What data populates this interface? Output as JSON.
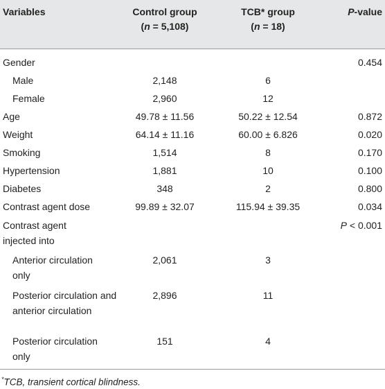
{
  "table": {
    "headers": {
      "variables": "Variables",
      "control_line1": "Control group",
      "control_n_prefix": "(",
      "control_n_var": "n",
      "control_n_rest": " = 5,108)",
      "tcb_line1": "TCB* group",
      "tcb_n_prefix": "(",
      "tcb_n_var": "n",
      "tcb_n_rest": " = 18)",
      "pvalue_italic": "P",
      "pvalue_rest": "-value"
    },
    "rows": [
      {
        "label": "Gender",
        "control": "",
        "tcb": "",
        "p": "0.454"
      },
      {
        "label": "Male",
        "control": "2,148",
        "tcb": "6",
        "p": ""
      },
      {
        "label": "Female",
        "control": "2,960",
        "tcb": "12",
        "p": ""
      },
      {
        "label": "Age",
        "control": "49.78 ± 11.56",
        "tcb": "50.22 ± 12.54",
        "p": "0.872"
      },
      {
        "label": "Weight",
        "control": "64.14 ± 11.16",
        "tcb": "60.00 ± 6.826",
        "p": "0.020"
      },
      {
        "label": "Smoking",
        "control": "1,514",
        "tcb": "8",
        "p": "0.170"
      },
      {
        "label": "Hypertension",
        "control": "1,881",
        "tcb": "10",
        "p": "0.100"
      },
      {
        "label": "Diabetes",
        "control": "348",
        "tcb": "2",
        "p": "0.800"
      },
      {
        "label": "Contrast agent dose",
        "control": "99.89 ± 32.07",
        "tcb": "115.94 ± 39.35",
        "p": "0.034"
      },
      {
        "label": "Contrast agent injected into",
        "control": "",
        "tcb": "",
        "p_italic": "P",
        "p": " < 0.001"
      },
      {
        "label": "Anterior circulation only",
        "control": "2,061",
        "tcb": "3",
        "p": ""
      },
      {
        "label": "Posterior circulation and anterior circulation",
        "control": "2,896",
        "tcb": "11",
        "p": ""
      },
      {
        "label": "Posterior circulation only",
        "control": "151",
        "tcb": "4",
        "p": ""
      }
    ],
    "footnote_mark": "*",
    "footnote": "TCB, transient cortical blindness."
  }
}
